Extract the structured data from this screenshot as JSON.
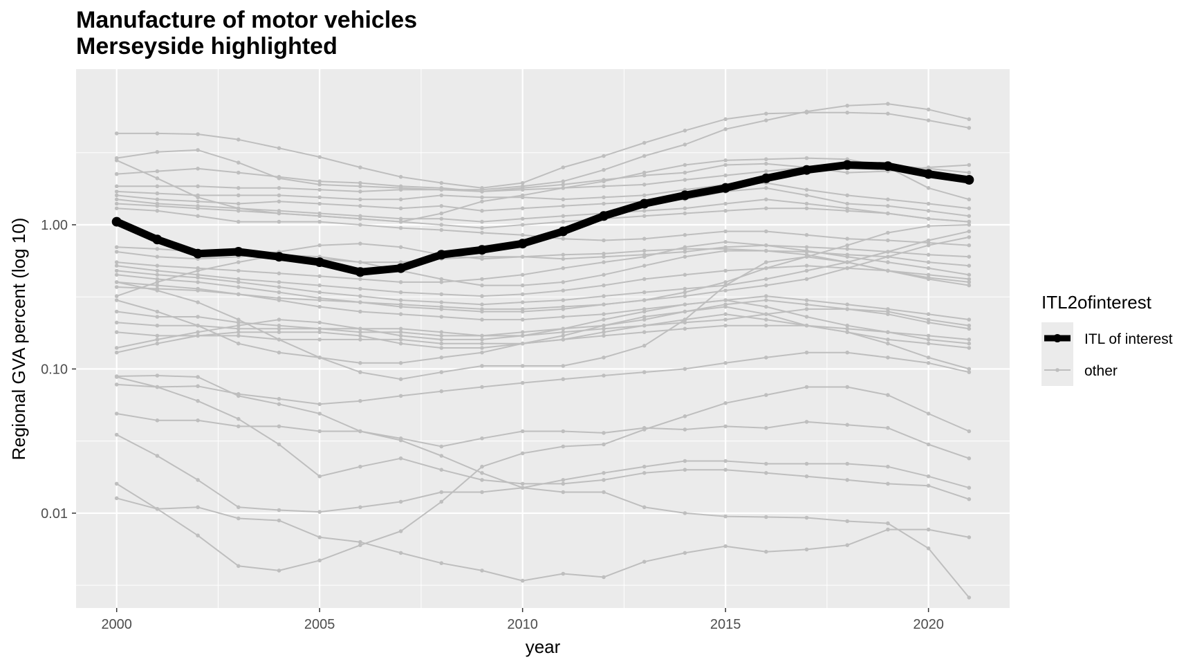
{
  "chart_data": {
    "type": "line",
    "title": "Manufacture of motor vehicles",
    "subtitle": "Merseyside highlighted",
    "xlabel": "year",
    "ylabel": "Regional GVA percent (log 10)",
    "xlim": [
      1999,
      2022
    ],
    "ylim": [
      0.0022,
      12
    ],
    "yscale": "log10",
    "x_ticks": [
      2000,
      2005,
      2010,
      2015,
      2020
    ],
    "x_tick_labels": [
      "2000",
      "2005",
      "2010",
      "2015",
      "2020"
    ],
    "y_ticks": [
      0.01,
      0.1,
      1.0
    ],
    "y_tick_labels": [
      "0.01",
      "0.10",
      "1.00"
    ],
    "grid": true,
    "legend": {
      "title": "ITL2ofinterest",
      "position": "right",
      "entries": [
        {
          "label": "ITL of interest",
          "color": "#000000"
        },
        {
          "label": "other",
          "color": "#bebebe"
        }
      ]
    },
    "colors": {
      "highlight": "#000000",
      "other": "#bebebe",
      "panel": "#ebebeb",
      "grid": "#ffffff"
    },
    "x": [
      2000,
      2001,
      2002,
      2003,
      2004,
      2005,
      2006,
      2007,
      2008,
      2009,
      2010,
      2011,
      2012,
      2013,
      2014,
      2015,
      2016,
      2017,
      2018,
      2019,
      2020,
      2021
    ],
    "highlight_series": {
      "group": "ITL of interest",
      "values": [
        1.05,
        0.79,
        0.63,
        0.65,
        0.6,
        0.55,
        0.47,
        0.5,
        0.62,
        0.67,
        0.74,
        0.9,
        1.15,
        1.4,
        1.6,
        1.8,
        2.1,
        2.4,
        2.6,
        2.55,
        2.25,
        2.05
      ]
    },
    "other_series": [
      {
        "values": [
          4.3,
          4.3,
          4.25,
          3.9,
          3.4,
          2.95,
          2.5,
          2.15,
          1.95,
          1.8,
          1.95,
          2.5,
          3.0,
          3.7,
          4.5,
          5.4,
          5.9,
          6.0,
          6.0,
          5.9,
          5.3,
          4.7
        ]
      },
      {
        "values": [
          2.9,
          3.2,
          3.3,
          2.7,
          2.1,
          1.9,
          1.85,
          1.8,
          1.75,
          1.75,
          1.85,
          2.0,
          2.4,
          3.0,
          3.6,
          4.6,
          5.3,
          6.1,
          6.7,
          6.9,
          6.3,
          5.4
        ]
      },
      {
        "values": [
          2.8,
          2.1,
          1.55,
          1.3,
          1.2,
          1.15,
          1.1,
          1.05,
          1.2,
          1.45,
          1.6,
          1.8,
          2.0,
          2.3,
          2.6,
          2.8,
          2.85,
          2.9,
          2.85,
          2.5,
          1.8,
          1.5
        ]
      },
      {
        "values": [
          2.25,
          2.35,
          2.45,
          2.3,
          2.15,
          2.0,
          1.95,
          1.85,
          1.8,
          1.7,
          1.8,
          1.9,
          2.05,
          2.2,
          2.3,
          2.6,
          2.65,
          2.5,
          2.3,
          2.35,
          2.5,
          2.6
        ]
      },
      {
        "values": [
          1.85,
          1.85,
          1.85,
          1.8,
          1.8,
          1.75,
          1.7,
          1.75,
          1.75,
          1.7,
          1.75,
          1.8,
          1.85,
          1.9,
          2.05,
          2.2,
          2.35,
          2.5,
          2.6,
          2.6,
          2.45,
          2.3
        ]
      },
      {
        "values": [
          1.7,
          1.65,
          1.6,
          1.6,
          1.6,
          1.55,
          1.5,
          1.5,
          1.6,
          1.55,
          1.55,
          1.5,
          1.55,
          1.6,
          1.75,
          1.9,
          1.95,
          1.75,
          1.6,
          1.5,
          1.4,
          1.3
        ]
      },
      {
        "values": [
          1.6,
          1.5,
          1.45,
          1.4,
          1.45,
          1.4,
          1.35,
          1.3,
          1.35,
          1.25,
          1.3,
          1.35,
          1.4,
          1.45,
          1.5,
          1.7,
          1.8,
          1.6,
          1.4,
          1.35,
          1.25,
          1.15
        ]
      },
      {
        "values": [
          1.5,
          1.4,
          1.35,
          1.3,
          1.25,
          1.2,
          1.15,
          1.1,
          1.1,
          1.05,
          1.1,
          1.15,
          1.2,
          1.25,
          1.3,
          1.4,
          1.5,
          1.4,
          1.3,
          1.2,
          1.1,
          1.05
        ]
      },
      {
        "values": [
          1.4,
          1.35,
          1.3,
          1.25,
          1.2,
          1.15,
          1.1,
          1.05,
          1.0,
          0.95,
          1.0,
          1.05,
          1.1,
          1.15,
          1.2,
          1.25,
          1.3,
          1.3,
          1.25,
          1.2,
          1.1,
          1.05
        ]
      },
      {
        "values": [
          1.3,
          1.25,
          1.15,
          1.05,
          1.05,
          1.05,
          1.0,
          0.95,
          0.92,
          0.88,
          0.85,
          0.8,
          0.78,
          0.8,
          0.85,
          0.9,
          0.9,
          0.85,
          0.8,
          0.78,
          0.75,
          0.72
        ]
      },
      {
        "values": [
          0.7,
          0.68,
          0.65,
          0.62,
          0.6,
          0.58,
          0.55,
          0.55,
          0.58,
          0.6,
          0.6,
          0.58,
          0.6,
          0.62,
          0.65,
          0.7,
          0.72,
          0.7,
          0.68,
          0.65,
          0.62,
          0.6
        ]
      },
      {
        "values": [
          0.65,
          0.6,
          0.58,
          0.6,
          0.65,
          0.72,
          0.74,
          0.7,
          0.62,
          0.58,
          0.6,
          0.62,
          0.63,
          0.66,
          0.68,
          0.68,
          0.66,
          0.65,
          0.62,
          0.6,
          0.55,
          0.52
        ]
      },
      {
        "values": [
          0.55,
          0.52,
          0.5,
          0.48,
          0.46,
          0.44,
          0.42,
          0.4,
          0.4,
          0.42,
          0.45,
          0.5,
          0.55,
          0.6,
          0.7,
          0.76,
          0.72,
          0.66,
          0.6,
          0.55,
          0.5,
          0.45
        ]
      },
      {
        "values": [
          0.52,
          0.48,
          0.45,
          0.42,
          0.4,
          0.38,
          0.36,
          0.34,
          0.33,
          0.32,
          0.33,
          0.35,
          0.38,
          0.42,
          0.45,
          0.48,
          0.5,
          0.52,
          0.5,
          0.48,
          0.45,
          0.42
        ]
      },
      {
        "values": [
          0.48,
          0.45,
          0.43,
          0.4,
          0.37,
          0.34,
          0.32,
          0.3,
          0.29,
          0.28,
          0.29,
          0.3,
          0.32,
          0.34,
          0.36,
          0.38,
          0.42,
          0.48,
          0.55,
          0.65,
          0.78,
          0.9
        ]
      },
      {
        "values": [
          0.45,
          0.42,
          0.4,
          0.37,
          0.34,
          0.31,
          0.29,
          0.27,
          0.26,
          0.25,
          0.25,
          0.26,
          0.28,
          0.3,
          0.32,
          0.35,
          0.38,
          0.42,
          0.5,
          0.6,
          0.72,
          0.82
        ]
      },
      {
        "values": [
          0.4,
          0.38,
          0.36,
          0.33,
          0.3,
          0.27,
          0.25,
          0.24,
          0.23,
          0.22,
          0.22,
          0.23,
          0.24,
          0.26,
          0.28,
          0.3,
          0.32,
          0.3,
          0.28,
          0.26,
          0.24,
          0.22
        ]
      },
      {
        "values": [
          0.37,
          0.36,
          0.35,
          0.33,
          0.31,
          0.3,
          0.29,
          0.28,
          0.27,
          0.26,
          0.26,
          0.27,
          0.28,
          0.3,
          0.34,
          0.4,
          0.5,
          0.6,
          0.72,
          0.88,
          0.98,
          1.0
        ]
      },
      {
        "values": [
          0.32,
          0.4,
          0.48,
          0.55,
          0.62,
          0.6,
          0.55,
          0.48,
          0.42,
          0.38,
          0.38,
          0.4,
          0.45,
          0.52,
          0.6,
          0.66,
          0.66,
          0.62,
          0.55,
          0.48,
          0.43,
          0.4
        ]
      },
      {
        "values": [
          0.25,
          0.23,
          0.23,
          0.21,
          0.2,
          0.19,
          0.18,
          0.18,
          0.17,
          0.17,
          0.18,
          0.19,
          0.2,
          0.22,
          0.25,
          0.28,
          0.3,
          0.28,
          0.26,
          0.24,
          0.21,
          0.19
        ]
      },
      {
        "values": [
          0.21,
          0.2,
          0.2,
          0.19,
          0.19,
          0.19,
          0.19,
          0.19,
          0.18,
          0.17,
          0.17,
          0.18,
          0.19,
          0.2,
          0.21,
          0.22,
          0.24,
          0.26,
          0.26,
          0.25,
          0.22,
          0.2
        ]
      },
      {
        "values": [
          0.18,
          0.17,
          0.17,
          0.17,
          0.16,
          0.16,
          0.16,
          0.16,
          0.15,
          0.15,
          0.15,
          0.16,
          0.17,
          0.18,
          0.19,
          0.2,
          0.2,
          0.2,
          0.19,
          0.18,
          0.17,
          0.16
        ]
      },
      {
        "values": [
          0.14,
          0.16,
          0.18,
          0.2,
          0.22,
          0.21,
          0.19,
          0.17,
          0.16,
          0.16,
          0.17,
          0.19,
          0.22,
          0.25,
          0.28,
          0.3,
          0.27,
          0.23,
          0.2,
          0.18,
          0.16,
          0.15
        ]
      },
      {
        "values": [
          0.13,
          0.15,
          0.17,
          0.18,
          0.18,
          0.18,
          0.17,
          0.15,
          0.14,
          0.14,
          0.15,
          0.16,
          0.18,
          0.2,
          0.22,
          0.24,
          0.22,
          0.2,
          0.18,
          0.16,
          0.15,
          0.14
        ]
      },
      {
        "values": [
          0.3,
          0.25,
          0.2,
          0.15,
          0.13,
          0.12,
          0.11,
          0.11,
          0.12,
          0.13,
          0.15,
          0.17,
          0.2,
          0.23,
          0.25,
          0.27,
          0.24,
          0.2,
          0.18,
          0.15,
          0.12,
          0.1
        ]
      },
      {
        "values": [
          0.4,
          0.35,
          0.29,
          0.22,
          0.16,
          0.12,
          0.095,
          0.085,
          0.095,
          0.105,
          0.105,
          0.105,
          0.12,
          0.145,
          0.22,
          0.38,
          0.55,
          0.6,
          0.55,
          0.48,
          0.42,
          0.38
        ]
      },
      {
        "values": [
          0.089,
          0.09,
          0.088,
          0.065,
          0.057,
          0.049,
          0.037,
          0.033,
          0.029,
          0.033,
          0.037,
          0.037,
          0.036,
          0.039,
          0.038,
          0.04,
          0.039,
          0.043,
          0.041,
          0.039,
          0.03,
          0.024
        ]
      },
      {
        "values": [
          0.078,
          0.075,
          0.076,
          0.067,
          0.062,
          0.057,
          0.06,
          0.065,
          0.07,
          0.075,
          0.08,
          0.085,
          0.09,
          0.095,
          0.1,
          0.11,
          0.12,
          0.13,
          0.13,
          0.12,
          0.11,
          0.095
        ]
      },
      {
        "values": [
          0.049,
          0.044,
          0.044,
          0.04,
          0.04,
          0.037,
          0.037,
          0.032,
          0.025,
          0.019,
          0.015,
          0.014,
          0.014,
          0.011,
          0.01,
          0.0095,
          0.0094,
          0.0093,
          0.0088,
          0.0085,
          0.0057,
          0.0026
        ]
      },
      {
        "values": [
          0.035,
          0.025,
          0.017,
          0.011,
          0.0105,
          0.0102,
          0.011,
          0.012,
          0.014,
          0.014,
          0.015,
          0.017,
          0.019,
          0.021,
          0.023,
          0.023,
          0.022,
          0.022,
          0.022,
          0.021,
          0.018,
          0.015
        ]
      },
      {
        "values": [
          0.016,
          0.0107,
          0.007,
          0.0043,
          0.004,
          0.0047,
          0.006,
          0.0075,
          0.012,
          0.021,
          0.026,
          0.029,
          0.03,
          0.038,
          0.047,
          0.058,
          0.066,
          0.075,
          0.075,
          0.066,
          0.049,
          0.037
        ]
      },
      {
        "values": [
          0.0127,
          0.0107,
          0.011,
          0.0092,
          0.0089,
          0.0068,
          0.0063,
          0.0053,
          0.0045,
          0.004,
          0.0034,
          0.0038,
          0.0036,
          0.0046,
          0.0053,
          0.0059,
          0.0054,
          0.0056,
          0.006,
          0.0077,
          0.0077,
          0.0068
        ]
      },
      {
        "values": [
          0.088,
          0.075,
          0.06,
          0.045,
          0.03,
          0.018,
          0.021,
          0.024,
          0.02,
          0.017,
          0.016,
          0.016,
          0.017,
          0.019,
          0.02,
          0.02,
          0.019,
          0.018,
          0.017,
          0.016,
          0.0155,
          0.0125
        ]
      }
    ]
  }
}
